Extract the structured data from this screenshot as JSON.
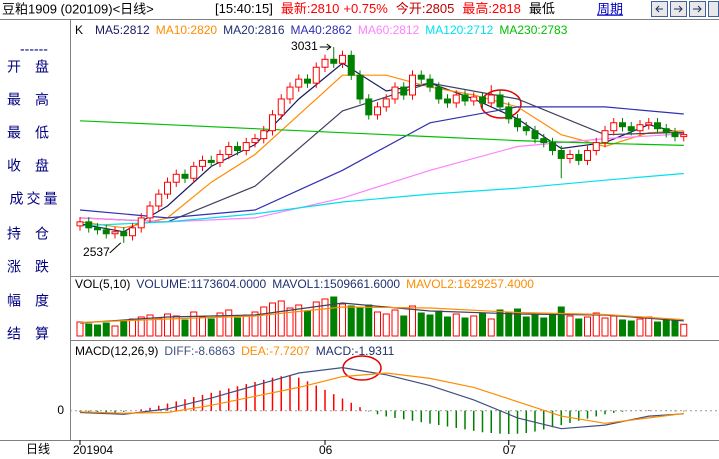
{
  "header": {
    "title": "豆粕1909 (020109)<日线>",
    "time": "[15:40:15]",
    "items": [
      "最新:2810",
      "+0.75%",
      "今开:2805",
      "最高:2818",
      "最低"
    ],
    "period": "周期"
  },
  "side_panel": {
    "separator": "------",
    "labels": [
      "开盘",
      "最高",
      "最低",
      "收盘",
      "成交量",
      "持仓",
      "涨跌",
      "幅度",
      "结算"
    ],
    "footer": "日线"
  },
  "chart_data": [
    {
      "type": "candlestick",
      "title": "K",
      "categories": [
        "201904",
        null,
        null,
        null,
        null,
        null,
        null,
        null,
        null,
        null,
        null,
        null,
        null,
        null,
        null,
        null,
        null,
        null,
        null,
        null,
        null,
        null,
        null,
        null,
        null,
        null,
        null,
        null,
        "06",
        null,
        null,
        null,
        null,
        null,
        null,
        null,
        null,
        null,
        null,
        null,
        null,
        null,
        null,
        null,
        null,
        null,
        null,
        null,
        null,
        "07",
        null,
        null,
        null,
        null,
        null,
        null,
        null,
        null,
        null,
        null,
        null,
        null,
        null,
        null,
        null,
        null,
        null,
        null,
        null,
        null
      ],
      "open": [
        2580,
        2590,
        2575,
        2570,
        2560,
        2565,
        2555,
        2575,
        2600,
        2630,
        2660,
        2690,
        2710,
        2700,
        2730,
        2745,
        2740,
        2760,
        2780,
        2770,
        2790,
        2800,
        2820,
        2860,
        2900,
        2930,
        2950,
        2940,
        2980,
        3000,
        2990,
        3010,
        2960,
        2900,
        2860,
        2880,
        2900,
        2930,
        2910,
        2960,
        2950,
        2930,
        2900,
        2890,
        2910,
        2895,
        2905,
        2890,
        2910,
        2880,
        2850,
        2830,
        2820,
        2800,
        2790,
        2770,
        2750,
        2760,
        2745,
        2770,
        2790,
        2820,
        2840,
        2830,
        2820,
        2835,
        2840,
        2825,
        2815,
        2805
      ],
      "high": [
        2602,
        2602,
        2587,
        2582,
        2577,
        2577,
        2587,
        2612,
        2642,
        2672,
        2702,
        2722,
        2722,
        2742,
        2757,
        2757,
        2772,
        2792,
        2792,
        2802,
        2812,
        2832,
        2872,
        2912,
        2942,
        2962,
        2962,
        2992,
        3012,
        3031,
        3022,
        3022,
        2972,
        2912,
        2892,
        2912,
        2942,
        2942,
        2972,
        2972,
        2962,
        2942,
        2912,
        2922,
        2922,
        2917,
        2917,
        2935,
        2922,
        2892,
        2862,
        2842,
        2832,
        2812,
        2802,
        2782,
        2772,
        2772,
        2782,
        2802,
        2832,
        2852,
        2852,
        2842,
        2847,
        2852,
        2852,
        2837,
        2827,
        2818
      ],
      "low": [
        2568,
        2563,
        2558,
        2548,
        2548,
        2537,
        2543,
        2563,
        2588,
        2618,
        2648,
        2678,
        2688,
        2688,
        2718,
        2728,
        2728,
        2748,
        2758,
        2758,
        2778,
        2788,
        2808,
        2848,
        2888,
        2918,
        2928,
        2928,
        2968,
        2978,
        2978,
        2948,
        2888,
        2848,
        2848,
        2868,
        2888,
        2898,
        2898,
        2938,
        2918,
        2888,
        2878,
        2878,
        2883,
        2883,
        2878,
        2878,
        2868,
        2838,
        2818,
        2808,
        2788,
        2778,
        2758,
        2700,
        2738,
        2733,
        2733,
        2758,
        2778,
        2808,
        2818,
        2808,
        2808,
        2823,
        2813,
        2803,
        2793,
        2793
      ],
      "close": [
        2590,
        2575,
        2570,
        2560,
        2565,
        2555,
        2575,
        2600,
        2630,
        2660,
        2690,
        2710,
        2700,
        2730,
        2745,
        2740,
        2760,
        2780,
        2770,
        2790,
        2800,
        2820,
        2860,
        2900,
        2930,
        2950,
        2940,
        2980,
        3000,
        2990,
        3010,
        2960,
        2900,
        2860,
        2880,
        2900,
        2930,
        2910,
        2960,
        2950,
        2930,
        2900,
        2890,
        2910,
        2895,
        2905,
        2890,
        2910,
        2880,
        2850,
        2830,
        2820,
        2800,
        2790,
        2770,
        2750,
        2760,
        2745,
        2770,
        2790,
        2820,
        2840,
        2830,
        2820,
        2835,
        2840,
        2825,
        2815,
        2805,
        2810
      ],
      "up_color": "#ff0000",
      "down_color": "#008000",
      "high_label": "3031",
      "low_label": "2537",
      "ylim": [
        2456,
        3079
      ],
      "series": [
        {
          "name": "MA5:2812",
          "color": "#1a1a60",
          "x": [
            0,
            5,
            10,
            15,
            20,
            25,
            30,
            35,
            40,
            45,
            50,
            55,
            60,
            65,
            69
          ],
          "values": [
            2585,
            2565,
            2630,
            2730,
            2785,
            2900,
            2990,
            2920,
            2940,
            2900,
            2850,
            2775,
            2790,
            2835,
            2812
          ]
        },
        {
          "name": "MA10:2820",
          "color": "#ff8c00",
          "x": [
            0,
            5,
            10,
            15,
            20,
            25,
            30,
            35,
            40,
            45,
            50,
            55,
            60,
            65,
            69
          ],
          "values": [
            2590,
            2575,
            2600,
            2690,
            2760,
            2860,
            2960,
            2960,
            2930,
            2910,
            2880,
            2810,
            2780,
            2815,
            2820
          ]
        },
        {
          "name": "MA20:2816",
          "color": "#404060",
          "x": [
            0,
            10,
            20,
            30,
            40,
            50,
            60,
            69
          ],
          "values": [
            2600,
            2590,
            2680,
            2870,
            2940,
            2900,
            2810,
            2816
          ]
        },
        {
          "name": "MA40:2862",
          "color": "#3030b0",
          "x": [
            0,
            10,
            20,
            30,
            40,
            50,
            60,
            69
          ],
          "values": [
            2620,
            2600,
            2620,
            2720,
            2840,
            2880,
            2880,
            2862
          ]
        },
        {
          "name": "MA60:2812",
          "color": "#ff80ff",
          "x": [
            0,
            10,
            20,
            30,
            40,
            50,
            60,
            69
          ],
          "values": [
            2600,
            2590,
            2600,
            2650,
            2720,
            2780,
            2800,
            2812
          ]
        },
        {
          "name": "MA120:2712",
          "color": "#00e0f0",
          "x": [
            0,
            10,
            20,
            30,
            40,
            50,
            60,
            69
          ],
          "values": [
            2580,
            2590,
            2610,
            2640,
            2660,
            2675,
            2695,
            2712
          ]
        },
        {
          "name": "MA230:2783",
          "color": "#00c000",
          "x": [
            0,
            10,
            20,
            30,
            40,
            50,
            60,
            69
          ],
          "values": [
            2845,
            2835,
            2825,
            2815,
            2805,
            2795,
            2788,
            2783
          ]
        }
      ]
    },
    {
      "type": "volume",
      "title": "VOL(5,10)",
      "subtitle": "VOLUME:1173604.0000",
      "values": [
        1400000,
        1200000,
        1100000,
        1300000,
        1000000,
        1500000,
        1700000,
        1900000,
        2100000,
        1800000,
        2200000,
        2000000,
        1600000,
        2400000,
        1900000,
        1700000,
        2300000,
        2600000,
        1800000,
        2100000,
        2400000,
        2900000,
        3300000,
        3500000,
        2800000,
        3100000,
        2500000,
        3400000,
        3700000,
        3900000,
        3200000,
        3000000,
        2800000,
        3100000,
        2400000,
        2200000,
        2600000,
        2000000,
        3000000,
        2300000,
        2100000,
        2500000,
        1900000,
        2200000,
        1800000,
        2000000,
        2300000,
        1700000,
        2600000,
        2400000,
        2700000,
        1900000,
        2100000,
        1800000,
        2200000,
        2900000,
        2000000,
        1700000,
        1900000,
        2300000,
        1800000,
        2000000,
        1600000,
        1500000,
        1700000,
        1900000,
        1400000,
        1600000,
        1500000,
        1173604
      ],
      "ylim": [
        0,
        4600000
      ],
      "series": [
        {
          "name": "MAVOL1:1509661.6000",
          "color": "#404060",
          "x": [
            0,
            10,
            20,
            30,
            40,
            50,
            60,
            69
          ],
          "values": [
            1300000,
            1900000,
            2100000,
            3300000,
            2500000,
            2200000,
            2100000,
            1509661.6
          ]
        },
        {
          "name": "MAVOL2:1629257.4000",
          "color": "#ff8c00",
          "x": [
            0,
            10,
            20,
            30,
            40,
            50,
            60,
            69
          ],
          "values": [
            1350000,
            1700000,
            2000000,
            2900000,
            2800000,
            2350000,
            2150000,
            1629257.4
          ]
        }
      ]
    },
    {
      "type": "macd",
      "title": "MACD(12,26,9)",
      "subtitle": "MACD:-1.9311",
      "values": [
        -3,
        -4,
        -5,
        -6,
        -5,
        -3,
        0,
        4,
        8,
        14,
        20,
        26,
        32,
        38,
        44,
        50,
        56,
        62,
        68,
        74,
        80,
        86,
        92,
        96,
        98,
        92,
        82,
        70,
        58,
        46,
        34,
        22,
        10,
        -2,
        -10,
        -16,
        -20,
        -24,
        -28,
        -32,
        -36,
        -40,
        -44,
        -48,
        -52,
        -56,
        -60,
        -62,
        -64,
        -65,
        -64,
        -62,
        -58,
        -52,
        -46,
        -40,
        -34,
        -28,
        -22,
        -16,
        -10,
        -6,
        -3,
        -1,
        1,
        2,
        0,
        -1,
        -1.5,
        -1.9311
      ],
      "up_color": "#ff0000",
      "down_color": "#008000",
      "ylim": [
        -76,
        183
      ],
      "yticks": [
        0
      ],
      "series": [
        {
          "name": "DIFF:-8.6863",
          "color": "#405080",
          "x": [
            0,
            5,
            10,
            15,
            20,
            25,
            30,
            35,
            40,
            45,
            50,
            55,
            60,
            65,
            69
          ],
          "values": [
            -5,
            -10,
            5,
            35,
            70,
            105,
            120,
            100,
            70,
            30,
            -20,
            -50,
            -40,
            -15,
            -8.6863
          ]
        },
        {
          "name": "DEA:-7.7207",
          "color": "#ff8c00",
          "x": [
            0,
            5,
            10,
            15,
            20,
            25,
            30,
            35,
            40,
            45,
            50,
            55,
            60,
            65,
            69
          ],
          "values": [
            -3,
            -7,
            -5,
            15,
            40,
            65,
            95,
            105,
            90,
            65,
            25,
            -15,
            -35,
            -20,
            -7.7207
          ]
        }
      ]
    }
  ]
}
